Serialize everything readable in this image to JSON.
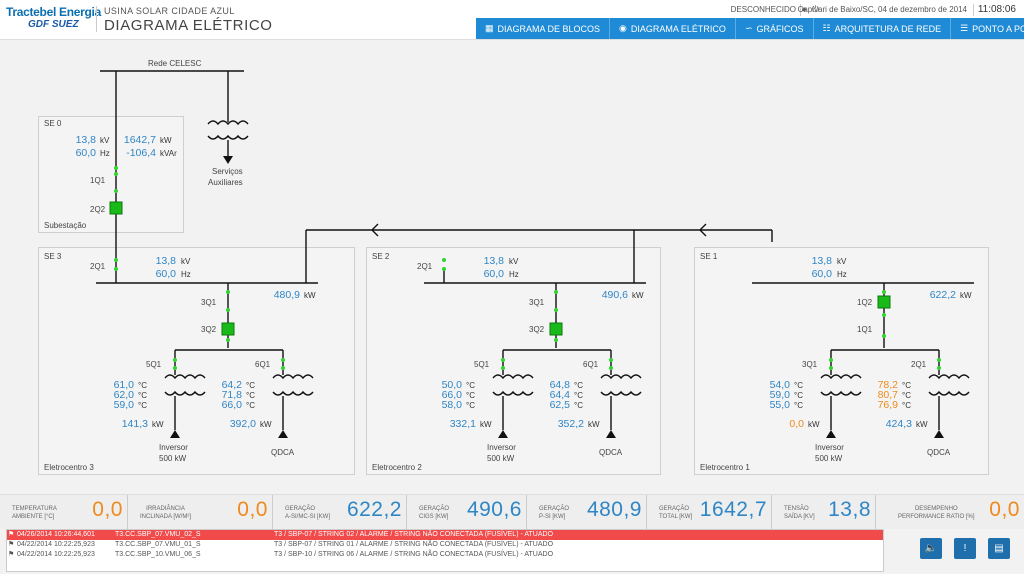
{
  "header": {
    "logo": "Tractebel Energia",
    "logo_sub": "GDF SUEZ",
    "plant_name": "USINA SOLAR CIDADE AZUL",
    "page_title": "DIAGRAMA ELÉTRICO",
    "connection_status": "DESCONHECIDO",
    "location_date": "Capivari de Baixo/SC, 04 de dezembro de 2014",
    "time": "11:08:06"
  },
  "nav": [
    {
      "label": "DIAGRAMA DE BLOCOS",
      "icon": "blocks-icon"
    },
    {
      "label": "DIAGRAMA ELÉTRICO",
      "icon": "eye-icon"
    },
    {
      "label": "GRÁFICOS",
      "icon": "chart-icon"
    },
    {
      "label": "ARQUITETURA DE REDE",
      "icon": "network-icon"
    },
    {
      "label": "PONTO A PONTO",
      "icon": "list-icon"
    }
  ],
  "diagram": {
    "grid_label": "Rede CELESC",
    "aux_label_1": "Serviços",
    "aux_label_2": "Auxiliares",
    "se0": {
      "name": "SE 0",
      "footer": "Subestação",
      "kv": "13,8",
      "hz": "60,0",
      "kw": "1642,7",
      "kvar": "-106,4",
      "b1": "1Q1",
      "b2": "2Q2"
    },
    "se3": {
      "name": "SE 3",
      "footer": "Eletrocentro 3",
      "b_in": "2Q1",
      "kv": "13,8",
      "hz": "60,0",
      "kw": "480,9",
      "b1": "3Q1",
      "b2": "3Q2",
      "left_b": "5Q1",
      "right_b": "6Q1",
      "left_t": [
        "61,0",
        "62,0",
        "59,0"
      ],
      "right_t": [
        "64,2",
        "71,8",
        "66,0"
      ],
      "left_kw": "141,3",
      "right_kw": "392,0",
      "left_name": "Inversor",
      "left_rating": "500 kW",
      "right_name": "QDCA"
    },
    "se2": {
      "name": "SE 2",
      "footer": "Eletrocentro 2",
      "b_in": "2Q1",
      "kv": "13,8",
      "hz": "60,0",
      "kw": "490,6",
      "b1": "3Q1",
      "b2": "3Q2",
      "left_b": "5Q1",
      "right_b": "6Q1",
      "left_t": [
        "50,0",
        "66,0",
        "58,0"
      ],
      "right_t": [
        "64,8",
        "64,4",
        "62,5"
      ],
      "left_kw": "332,1",
      "right_kw": "352,2",
      "left_name": "Inversor",
      "left_rating": "500 kW",
      "right_name": "QDCA"
    },
    "se1": {
      "name": "SE 1",
      "footer": "Eletrocentro 1",
      "kv": "13,8",
      "hz": "60,0",
      "kw": "622,2",
      "b1": "1Q2",
      "b2": "1Q1",
      "left_b": "3Q1",
      "right_b": "2Q1",
      "left_t": [
        "54,0",
        "59,0",
        "55,0"
      ],
      "right_t": [
        "78,2",
        "80,7",
        "76,9"
      ],
      "left_kw": "0,0",
      "right_kw": "424,3",
      "left_name": "Inversor",
      "left_rating": "500 kW",
      "right_name": "QDCA"
    },
    "units": {
      "kv": "kV",
      "hz": "Hz",
      "kw": "kW",
      "kvar": "kVAr",
      "c": "°C"
    }
  },
  "metrics": [
    {
      "l1": "TEMPERATURA",
      "l2": "AMBIENTE [°C]",
      "value": "0,0",
      "color": "#f08a1c"
    },
    {
      "l1": "IRRADIÂNCIA",
      "l2": "INCLINADA [W/m²]",
      "value": "0,0",
      "color": "#f08a1c"
    },
    {
      "l1": "GERAÇÃO",
      "l2": "a-Si/µc-Si [kW]",
      "value": "622,2",
      "color": "#2f86c6"
    },
    {
      "l1": "GERAÇÃO",
      "l2": "CIGS [kW]",
      "value": "490,6",
      "color": "#2f86c6"
    },
    {
      "l1": "GERAÇÃO",
      "l2": "p-Si [kW]",
      "value": "480,9",
      "color": "#2f86c6"
    },
    {
      "l1": "GERAÇÃO",
      "l2": "TOTAL [kW]",
      "value": "1642,7",
      "color": "#2f86c6"
    },
    {
      "l1": "TENSÃO",
      "l2": "SAÍDA [kV]",
      "value": "13,8",
      "color": "#2f86c6"
    },
    {
      "l1": "DESEMPENHO",
      "l2": "PERFORMANCE RATIO [%]",
      "value": "0,0",
      "color": "#f08a1c"
    }
  ],
  "alarms": [
    {
      "time": "04/26/2014 10:26:44,601",
      "tag": "T3.CC.SBP_07.VMU_02_S",
      "desc": "T3 / SBP-07 / STRING 02 / ALARME / STRING NÃO CONECTADA (FUSÍVEL) - ATUADO",
      "active": true
    },
    {
      "time": "04/22/2014 10:22:25,923",
      "tag": "T3.CC.SBP_07.VMU_01_S",
      "desc": "T3 / SBP-07 / STRING 01 / ALARME / STRING NÃO CONECTADA (FUSÍVEL) - ATUADO",
      "active": false
    },
    {
      "time": "04/22/2014 10:22:25,923",
      "tag": "T3.CC.SBP_10.VMU_06_S",
      "desc": "T3 / SBP-10 / STRING 06 / ALARME / STRING NÃO CONECTADA (FUSÍVEL) - ATUADO",
      "active": false
    }
  ],
  "colors": {
    "blue": "#2f86c6",
    "orange": "#f08a1c",
    "green_breaker": "#19b919",
    "alarm_red": "#f04a4a",
    "nav_blue": "#1f8ad6"
  }
}
